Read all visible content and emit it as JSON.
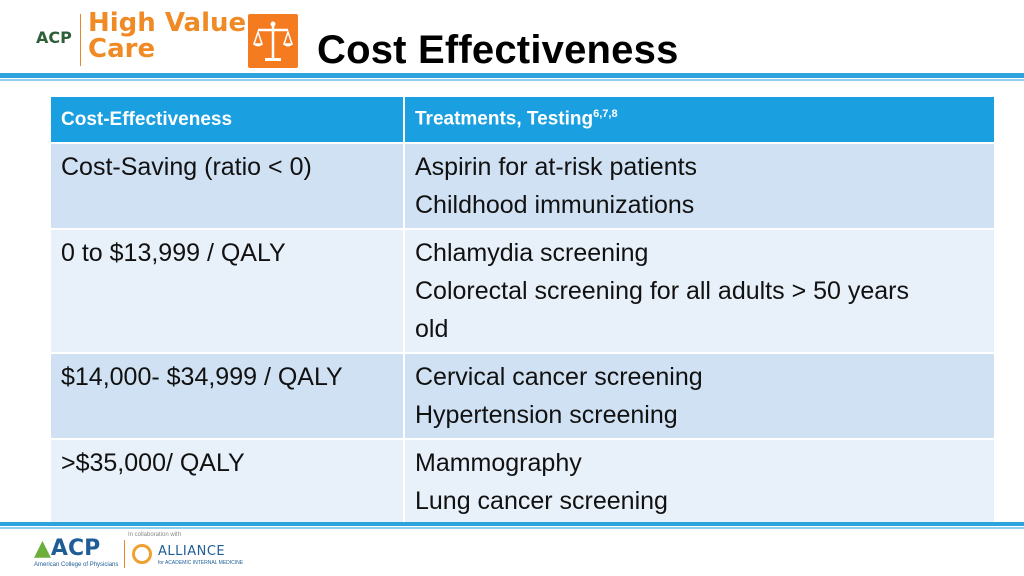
{
  "header": {
    "acp_short": "ACP",
    "brand_line1": "High Value",
    "brand_line2": "Care",
    "title": "Cost Effectiveness"
  },
  "table": {
    "col1_header": "Cost-Effectiveness",
    "col2_header": "Treatments, Testing",
    "col2_header_sup": "6,7,8",
    "rows": [
      {
        "cost": "Cost-Saving (ratio < 0)",
        "items": [
          "Aspirin for at-risk patients",
          "Childhood immunizations"
        ]
      },
      {
        "cost": "0 to $13,999 / QALY",
        "items": [
          "Chlamydia screening",
          "Colorectal screening for all adults > 50 years",
          "old"
        ]
      },
      {
        "cost": "$14,000- $34,999 / QALY",
        "items": [
          "Cervical cancer screening",
          "Hypertension screening"
        ]
      },
      {
        "cost": ">$35,000/ QALY",
        "items": [
          "Mammography",
          "Lung cancer screening"
        ]
      }
    ]
  },
  "footer": {
    "acp": "ACP",
    "acp_sub": "American College of Physicians",
    "collab": "In collaboration with",
    "alliance": "ALLIANCE",
    "alliance_sub": "for ACADEMIC INTERNAL MEDICINE"
  },
  "colors": {
    "header_blue": "#1a9fe0",
    "row_dark": "#cfe1f2",
    "row_light": "#e8f0f9",
    "brand_orange": "#f08a24"
  },
  "icons": [
    "scales-of-justice-icon"
  ]
}
